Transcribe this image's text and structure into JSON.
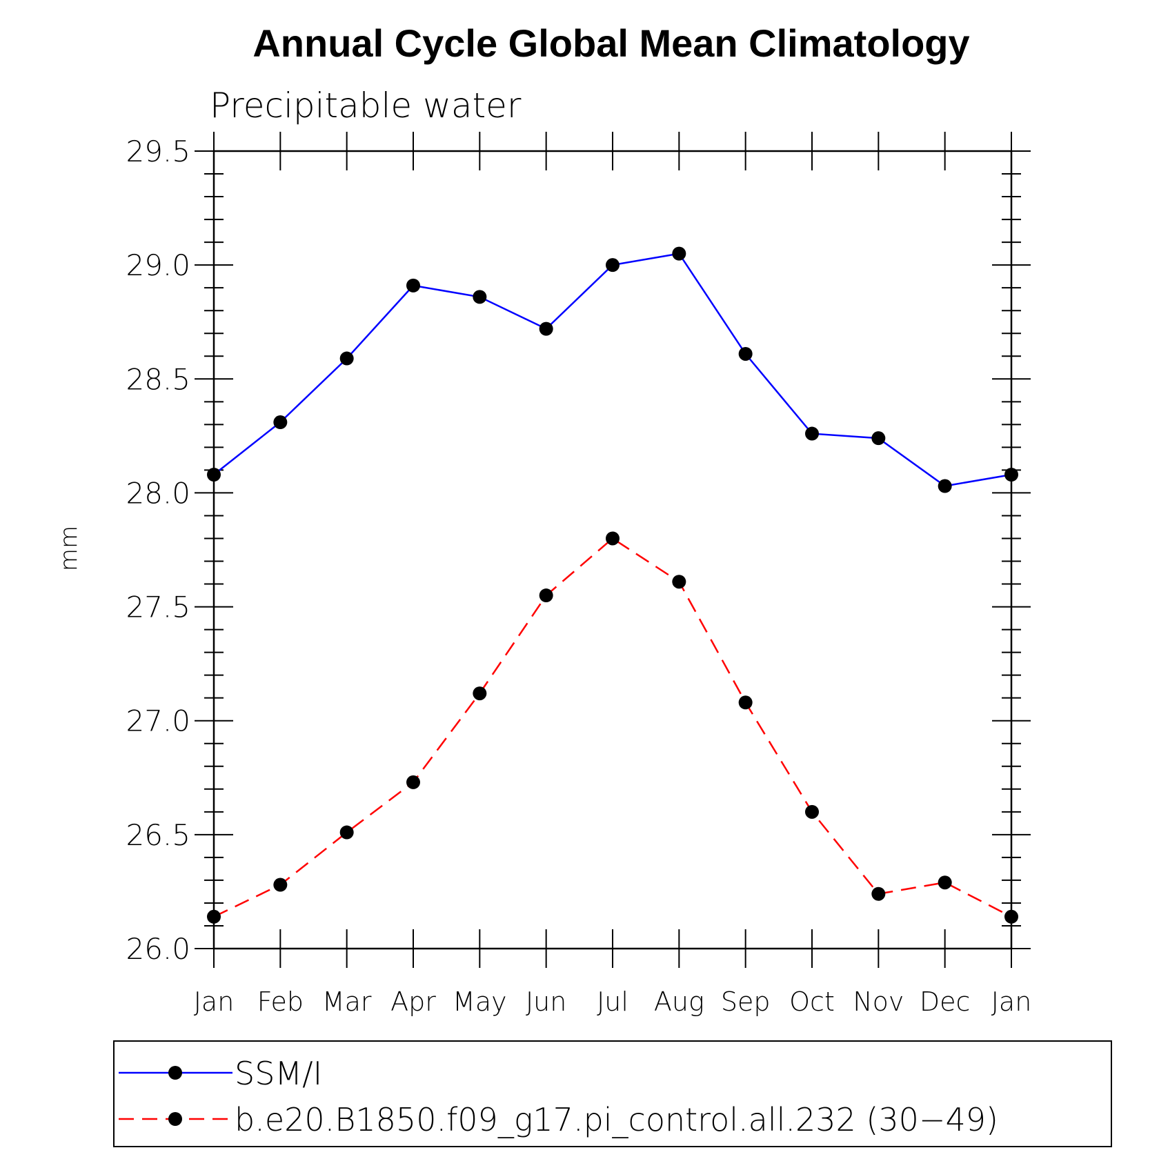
{
  "chart_data": {
    "type": "line",
    "title": "Annual Cycle Global Mean Climatology",
    "subtitle": "Precipitable water",
    "xlabel": "",
    "ylabel": "mm",
    "ylim": [
      26.0,
      29.5
    ],
    "y_major_ticks": [
      "26.0",
      "26.5",
      "27.0",
      "27.5",
      "28.0",
      "28.5",
      "29.0",
      "29.5"
    ],
    "categories": [
      "Jan",
      "Feb",
      "Mar",
      "Apr",
      "May",
      "Jun",
      "Jul",
      "Aug",
      "Sep",
      "Oct",
      "Nov",
      "Dec",
      "Jan"
    ],
    "grid": false,
    "legend_position": "bottom",
    "series": [
      {
        "name": "SSM/I",
        "color": "#0000ff",
        "line_style": "solid",
        "marker": "filled-circle",
        "values": [
          28.08,
          28.31,
          28.59,
          28.91,
          28.86,
          28.72,
          29.0,
          29.05,
          28.61,
          28.26,
          28.24,
          28.03,
          28.08
        ]
      },
      {
        "name": "b.e20.B1850.f09_g17.pi_control.all.232 (30−49)",
        "color": "#ff0000",
        "line_style": "dashed",
        "marker": "filled-circle",
        "values": [
          26.14,
          26.28,
          26.51,
          26.73,
          27.12,
          27.55,
          27.8,
          27.61,
          27.08,
          26.6,
          26.24,
          26.29,
          26.14
        ]
      }
    ]
  }
}
